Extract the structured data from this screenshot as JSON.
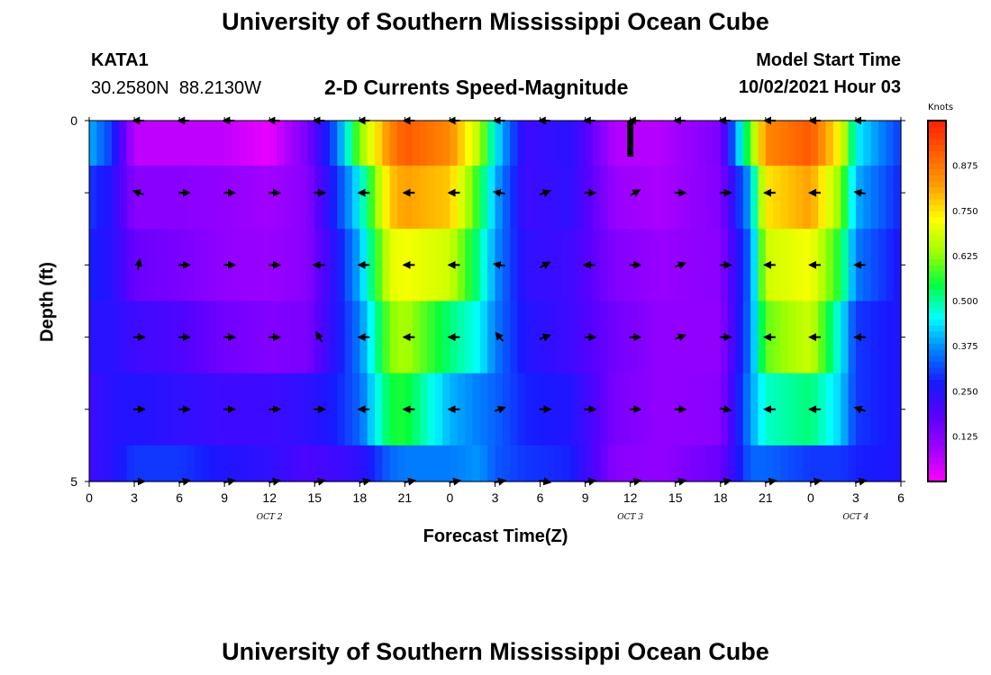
{
  "header": {
    "title": "University of Southern Mississippi Ocean Cube",
    "station": "KATA1",
    "coordinates": "30.2580N  88.2130W",
    "model_start_label": "Model Start Time",
    "model_start_value": "10/02/2021 Hour 03",
    "footer_title": "University of Southern Mississippi Ocean Cube"
  },
  "colors": {
    "palette": [
      "#ff00ff",
      "#a000ff",
      "#5a00ff",
      "#1818ff",
      "#0080ff",
      "#00ffff",
      "#00ff40",
      "#a0ff00",
      "#ffff00",
      "#ffa000",
      "#ff6000",
      "#ff2000"
    ]
  },
  "chart_data": {
    "type": "heatmap",
    "title": "2-D Currents Speed-Magnitude",
    "xlabel": "Forecast Time(Z)",
    "ylabel": "Depth (ft)",
    "colorbar_label": "Knots",
    "colorbar_range": [
      0.0,
      1.0
    ],
    "colorbar_ticks": [
      "0.875",
      "0.750",
      "0.625",
      "0.500",
      "0.375",
      "0.250",
      "0.125"
    ],
    "colorbar_tick_values": [
      0.875,
      0.75,
      0.625,
      0.5,
      0.375,
      0.25,
      0.125
    ],
    "x_range_hours": [
      0,
      54
    ],
    "x_tick_labels": [
      "0",
      "3",
      "6",
      "9",
      "12",
      "15",
      "18",
      "21",
      "0",
      "3",
      "6",
      "9",
      "12",
      "15",
      "18",
      "21",
      "0",
      "3",
      "6"
    ],
    "date_labels": [
      {
        "label": "OCT 2",
        "hour": 12
      },
      {
        "label": "OCT 3",
        "hour": 36
      },
      {
        "label": "OCT 4",
        "hour": 51
      }
    ],
    "y_range": [
      0,
      5
    ],
    "y_tick_labels": [
      "0",
      "5"
    ],
    "layer_depths": [
      0.25,
      1.0,
      2.0,
      3.0,
      4.0,
      5.0
    ],
    "speed_control_points": [
      {
        "hour": 0.0,
        "speeds": [
          0.4,
          0.3,
          0.28,
          0.25,
          0.22,
          0.22
        ]
      },
      {
        "hour": 1.5,
        "speeds": [
          0.3,
          0.25,
          0.25,
          0.25,
          0.25,
          0.25
        ]
      },
      {
        "hour": 3.0,
        "speeds": [
          0.06,
          0.12,
          0.16,
          0.22,
          0.26,
          0.3
        ]
      },
      {
        "hour": 6.0,
        "speeds": [
          0.06,
          0.12,
          0.14,
          0.2,
          0.24,
          0.3
        ]
      },
      {
        "hour": 9.0,
        "speeds": [
          0.06,
          0.11,
          0.11,
          0.15,
          0.22,
          0.26
        ]
      },
      {
        "hour": 12.0,
        "speeds": [
          0.02,
          0.09,
          0.1,
          0.13,
          0.22,
          0.24
        ]
      },
      {
        "hour": 14.5,
        "speeds": [
          0.14,
          0.12,
          0.12,
          0.14,
          0.24,
          0.2
        ]
      },
      {
        "hour": 16.5,
        "speeds": [
          0.35,
          0.3,
          0.26,
          0.26,
          0.28,
          0.22
        ]
      },
      {
        "hour": 18.0,
        "speeds": [
          0.62,
          0.45,
          0.4,
          0.36,
          0.34,
          0.24
        ]
      },
      {
        "hour": 20.0,
        "speeds": [
          0.85,
          0.78,
          0.7,
          0.62,
          0.55,
          0.34
        ]
      },
      {
        "hour": 21.0,
        "speeds": [
          0.92,
          0.82,
          0.72,
          0.65,
          0.56,
          0.36
        ]
      },
      {
        "hour": 24.0,
        "speeds": [
          0.85,
          0.78,
          0.68,
          0.52,
          0.4,
          0.36
        ]
      },
      {
        "hour": 26.0,
        "speeds": [
          0.65,
          0.55,
          0.5,
          0.45,
          0.36,
          0.38
        ]
      },
      {
        "hour": 27.0,
        "speeds": [
          0.45,
          0.4,
          0.38,
          0.36,
          0.34,
          0.33
        ]
      },
      {
        "hour": 29.0,
        "speeds": [
          0.22,
          0.22,
          0.24,
          0.26,
          0.28,
          0.3
        ]
      },
      {
        "hour": 32.0,
        "speeds": [
          0.25,
          0.24,
          0.22,
          0.22,
          0.26,
          0.28
        ]
      },
      {
        "hour": 35.0,
        "speeds": [
          0.07,
          0.1,
          0.13,
          0.15,
          0.14,
          0.12
        ]
      },
      {
        "hour": 38.0,
        "speeds": [
          0.07,
          0.08,
          0.1,
          0.11,
          0.11,
          0.11
        ]
      },
      {
        "hour": 42.0,
        "speeds": [
          0.14,
          0.13,
          0.12,
          0.11,
          0.12,
          0.16
        ]
      },
      {
        "hour": 44.0,
        "speeds": [
          0.6,
          0.4,
          0.35,
          0.36,
          0.38,
          0.34
        ]
      },
      {
        "hour": 45.0,
        "speeds": [
          0.85,
          0.75,
          0.68,
          0.6,
          0.48,
          0.34
        ]
      },
      {
        "hour": 48.0,
        "speeds": [
          0.92,
          0.82,
          0.72,
          0.68,
          0.52,
          0.3
        ]
      },
      {
        "hour": 50.0,
        "speeds": [
          0.72,
          0.62,
          0.55,
          0.45,
          0.42,
          0.3
        ]
      },
      {
        "hour": 51.0,
        "speeds": [
          0.45,
          0.4,
          0.36,
          0.3,
          0.3,
          0.28
        ]
      },
      {
        "hour": 54.0,
        "speeds": [
          0.3,
          0.28,
          0.26,
          0.26,
          0.26,
          0.26
        ]
      }
    ],
    "dropout": {
      "hour_start": 35.8,
      "hour_end": 36.2,
      "depth_start": 0.0,
      "depth_end": 0.5
    },
    "vector_rows_depth": [
      0.0,
      1.0,
      2.0,
      3.0,
      4.0,
      5.0
    ],
    "vector_hours": [
      3,
      6,
      9,
      12,
      15,
      18,
      21,
      24,
      27,
      30,
      33,
      36,
      39,
      42,
      45,
      48,
      51
    ],
    "vector_directions_deg": [
      [
        180,
        180,
        180,
        180,
        180,
        180,
        180,
        180,
        180,
        180,
        180,
        180,
        180,
        180,
        180,
        180,
        180
      ],
      [
        160,
        0,
        0,
        0,
        0,
        180,
        180,
        180,
        170,
        20,
        0,
        30,
        0,
        0,
        180,
        180,
        170
      ],
      [
        80,
        0,
        0,
        0,
        180,
        180,
        180,
        180,
        170,
        30,
        180,
        0,
        20,
        0,
        180,
        180,
        180
      ],
      [
        0,
        0,
        0,
        0,
        120,
        180,
        180,
        180,
        130,
        20,
        0,
        0,
        20,
        0,
        180,
        180,
        180
      ],
      [
        0,
        0,
        0,
        0,
        0,
        180,
        180,
        180,
        20,
        0,
        0,
        0,
        0,
        350,
        180,
        180,
        160
      ],
      [
        0,
        10,
        10,
        10,
        10,
        10,
        10,
        10,
        10,
        350,
        10,
        10,
        10,
        10,
        10,
        10,
        10
      ]
    ]
  }
}
